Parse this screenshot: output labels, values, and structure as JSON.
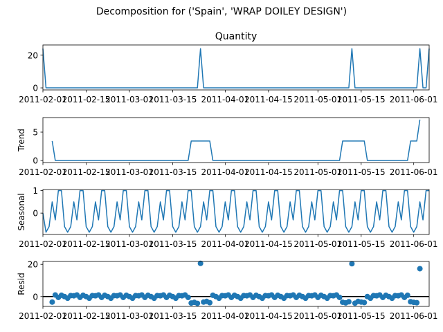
{
  "title": "Decomposition for ('Spain', 'WRAP DOILEY DESIGN')",
  "colors": {
    "line": "#1f77b4",
    "axis": "#000000",
    "background": "#ffffff"
  },
  "x_ticks": [
    "2011-02-01",
    "2011-02-15",
    "2011-03-01",
    "2011-03-15",
    "2011-04-01",
    "2011-04-15",
    "2011-05-01",
    "2011-05-15",
    "2011-06-01"
  ],
  "chart_data": [
    {
      "type": "line",
      "name": "observed",
      "title": "Quantity",
      "ylabel": "",
      "ylim": [
        -1.25,
        26.25
      ],
      "yticks": [
        "0",
        "20"
      ],
      "x_range": [
        "2011-02-01",
        "2011-06-06"
      ],
      "points": [
        [
          "2011-02-01",
          24
        ],
        [
          "2011-02-02",
          0
        ],
        [
          "2011-03-23",
          0
        ],
        [
          "2011-03-24",
          24
        ],
        [
          "2011-03-25",
          0
        ],
        [
          "2011-05-11",
          0
        ],
        [
          "2011-05-12",
          24
        ],
        [
          "2011-05-13",
          0
        ],
        [
          "2011-06-02",
          0
        ],
        [
          "2011-06-03",
          24
        ],
        [
          "2011-06-04",
          0
        ],
        [
          "2011-06-05",
          0
        ],
        [
          "2011-06-06",
          24
        ]
      ],
      "grid": false
    },
    {
      "type": "line",
      "name": "trend",
      "title": "",
      "ylabel": "Trend",
      "ylim": [
        -0.36,
        7.56
      ],
      "yticks": [
        "0",
        "5"
      ],
      "x_range": [
        "2011-02-01",
        "2011-06-06"
      ],
      "points": [
        [
          "2011-02-04",
          3.43
        ],
        [
          "2011-02-05",
          0
        ],
        [
          "2011-03-20",
          0
        ],
        [
          "2011-03-21",
          3.43
        ],
        [
          "2011-03-27",
          3.43
        ],
        [
          "2011-03-28",
          0
        ],
        [
          "2011-05-08",
          0
        ],
        [
          "2011-05-09",
          3.43
        ],
        [
          "2011-05-16",
          3.43
        ],
        [
          "2011-05-17",
          0
        ],
        [
          "2011-05-30",
          0
        ],
        [
          "2011-05-31",
          3.43
        ],
        [
          "2011-06-02",
          3.43
        ],
        [
          "2011-06-03",
          7.2
        ]
      ],
      "grid": false
    },
    {
      "type": "line",
      "name": "seasonal",
      "title": "",
      "ylabel": "Seasonal",
      "ylim": [
        -0.95,
        1.05
      ],
      "yticks": [
        "0",
        "1"
      ],
      "x_range": [
        "2011-02-01",
        "2011-06-06"
      ],
      "pattern": [
        -0.85,
        -0.6,
        0.5,
        -0.3,
        1.0,
        1.0,
        -0.6
      ],
      "pattern_start_value": 0.0,
      "grid": false
    },
    {
      "type": "scatter",
      "name": "resid",
      "title": "",
      "ylabel": "Resid",
      "ylim": [
        -6.1,
        21.8
      ],
      "yticks": [
        "0",
        "20"
      ],
      "x_range": [
        "2011-02-01",
        "2011-06-06"
      ],
      "zero_line": true,
      "base_pattern": [
        0.5,
        1.0,
        -0.5,
        0.8,
        0.0,
        -1.0,
        0.6
      ],
      "special_points": [
        [
          "2011-02-04",
          -3.4
        ],
        [
          "2011-03-21",
          -4.0
        ],
        [
          "2011-03-22",
          -3.6
        ],
        [
          "2011-03-23",
          -4.2
        ],
        [
          "2011-03-24",
          20.6
        ],
        [
          "2011-03-25",
          -3.4
        ],
        [
          "2011-03-26",
          -3.0
        ],
        [
          "2011-03-27",
          -3.8
        ],
        [
          "2011-05-09",
          -3.5
        ],
        [
          "2011-05-10",
          -3.9
        ],
        [
          "2011-05-11",
          -3.2
        ],
        [
          "2011-05-12",
          20.4
        ],
        [
          "2011-05-13",
          -4.1
        ],
        [
          "2011-05-14",
          -3.0
        ],
        [
          "2011-05-15",
          -3.4
        ],
        [
          "2011-05-16",
          -3.7
        ],
        [
          "2011-05-31",
          -3.2
        ],
        [
          "2011-06-01",
          -3.6
        ],
        [
          "2011-06-02",
          -3.8
        ],
        [
          "2011-06-03",
          17.3
        ]
      ]
    }
  ]
}
